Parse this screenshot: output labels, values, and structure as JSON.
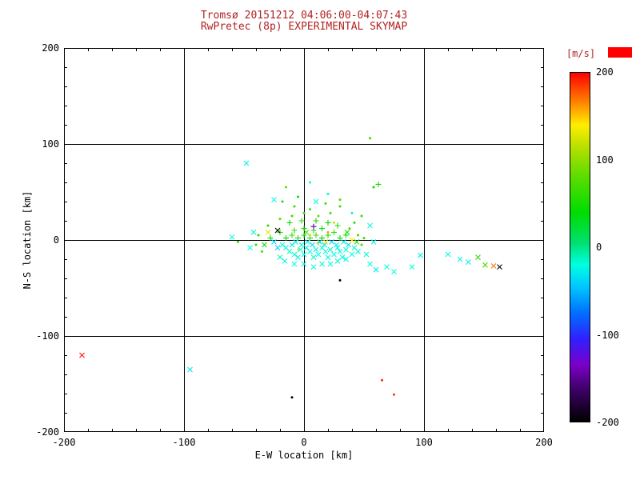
{
  "title": {
    "line1": "Tromsø 20151212 04:06:00-04:07:43",
    "line2": "RwPretec (8p) EXPERIMENTAL SKYMAP"
  },
  "colors": {
    "background": "#ffffff",
    "title": "#b22222",
    "axis": "#000000",
    "saturation_box": "#ff0000"
  },
  "chart_data": {
    "type": "scatter",
    "xlabel": "E-W location [km]",
    "ylabel": "N-S location [km]",
    "xlim": [
      -200,
      200
    ],
    "ylim": [
      -200,
      200
    ],
    "xticks": [
      -200,
      -100,
      0,
      100,
      200
    ],
    "yticks": [
      -200,
      -100,
      0,
      100,
      200
    ],
    "grid": true,
    "legend_position": "right-colorbar",
    "colorbar": {
      "label": "[m/s]",
      "min": -200,
      "max": 200,
      "ticks": [
        200,
        100,
        0,
        -100,
        -200
      ],
      "stops": [
        [
          -200,
          "#000000"
        ],
        [
          -165,
          "#3a0060"
        ],
        [
          -135,
          "#7a00c8"
        ],
        [
          -105,
          "#3020ff"
        ],
        [
          -75,
          "#0070ff"
        ],
        [
          -45,
          "#00c8ff"
        ],
        [
          -20,
          "#00ffe0"
        ],
        [
          5,
          "#00e070"
        ],
        [
          40,
          "#00dd00"
        ],
        [
          85,
          "#66dd00"
        ],
        [
          115,
          "#b8e000"
        ],
        [
          140,
          "#ffee00"
        ],
        [
          165,
          "#ff8800"
        ],
        [
          200,
          "#ff0000"
        ]
      ]
    },
    "point_format": [
      "x_km",
      "y_km",
      "velocity_ms",
      "marker"
    ],
    "marker_legend": {
      "x": "cross",
      "+": "plus",
      "d": "dot"
    },
    "points": [
      [
        -185,
        -120,
        195,
        "x"
      ],
      [
        -95,
        -135,
        -30,
        "x"
      ],
      [
        -10,
        -164,
        -200,
        "d"
      ],
      [
        65,
        -146,
        190,
        "d"
      ],
      [
        75,
        -161,
        185,
        "d"
      ],
      [
        55,
        106,
        60,
        "d"
      ],
      [
        -48,
        80,
        -25,
        "x"
      ],
      [
        120,
        -15,
        -20,
        "x"
      ],
      [
        130,
        -20,
        -22,
        "x"
      ],
      [
        137,
        -23,
        -28,
        "x"
      ],
      [
        145,
        -18,
        55,
        "x"
      ],
      [
        151,
        -26,
        75,
        "x"
      ],
      [
        158,
        -27,
        170,
        "x"
      ],
      [
        163,
        -28,
        -200,
        "x"
      ],
      [
        90,
        -28,
        -20,
        "x"
      ],
      [
        97,
        -16,
        -24,
        "x"
      ],
      [
        55,
        -25,
        -20,
        "x"
      ],
      [
        60,
        -31,
        -26,
        "x"
      ],
      [
        69,
        -28,
        -21,
        "x"
      ],
      [
        75,
        -33,
        -23,
        "x"
      ],
      [
        52,
        -15,
        -18,
        "x"
      ],
      [
        30,
        -42,
        -200,
        "d"
      ],
      [
        5,
        60,
        -20,
        "d"
      ],
      [
        -15,
        55,
        80,
        "d"
      ],
      [
        20,
        48,
        -15,
        "d"
      ],
      [
        -5,
        45,
        30,
        "d"
      ],
      [
        10,
        40,
        -20,
        "x"
      ],
      [
        -25,
        42,
        -18,
        "x"
      ],
      [
        30,
        35,
        60,
        "d"
      ],
      [
        40,
        28,
        -15,
        "d"
      ],
      [
        58,
        55,
        45,
        "d"
      ],
      [
        -18,
        40,
        55,
        "d"
      ],
      [
        5,
        32,
        70,
        "d"
      ],
      [
        -8,
        35,
        60,
        "d"
      ],
      [
        18,
        38,
        65,
        "d"
      ],
      [
        30,
        42,
        75,
        "d"
      ],
      [
        -10,
        25,
        70,
        "d"
      ],
      [
        0,
        28,
        60,
        "d"
      ],
      [
        12,
        25,
        80,
        "d"
      ],
      [
        22,
        28,
        65,
        "d"
      ],
      [
        -20,
        22,
        75,
        "d"
      ],
      [
        -30,
        15,
        60,
        "d"
      ],
      [
        38,
        12,
        70,
        "d"
      ],
      [
        45,
        5,
        65,
        "d"
      ],
      [
        -38,
        5,
        55,
        "d"
      ],
      [
        -40,
        -5,
        60,
        "d"
      ],
      [
        48,
        -5,
        70,
        "d"
      ],
      [
        50,
        2,
        60,
        "d"
      ],
      [
        -35,
        -12,
        65,
        "d"
      ],
      [
        42,
        18,
        55,
        "d"
      ],
      [
        48,
        25,
        60,
        "d"
      ],
      [
        -55,
        -2,
        60,
        "d"
      ],
      [
        -15,
        2,
        40,
        "+"
      ],
      [
        -10,
        5,
        60,
        "+"
      ],
      [
        -5,
        2,
        50,
        "+"
      ],
      [
        0,
        5,
        45,
        "+"
      ],
      [
        5,
        2,
        55,
        "+"
      ],
      [
        10,
        5,
        65,
        "+"
      ],
      [
        15,
        2,
        40,
        "+"
      ],
      [
        20,
        5,
        50,
        "+"
      ],
      [
        -8,
        10,
        60,
        "+"
      ],
      [
        0,
        12,
        45,
        "+"
      ],
      [
        8,
        10,
        55,
        "+"
      ],
      [
        15,
        12,
        35,
        "+"
      ],
      [
        25,
        8,
        60,
        "+"
      ],
      [
        30,
        2,
        45,
        "+"
      ],
      [
        -20,
        8,
        50,
        "+"
      ],
      [
        -28,
        2,
        40,
        "+"
      ],
      [
        35,
        5,
        55,
        "+"
      ],
      [
        -12,
        18,
        45,
        "+"
      ],
      [
        -2,
        20,
        60,
        "+"
      ],
      [
        10,
        20,
        50,
        "+"
      ],
      [
        20,
        18,
        40,
        "+"
      ],
      [
        28,
        15,
        55,
        "+"
      ],
      [
        8,
        14,
        -150,
        "+"
      ],
      [
        12,
        -3,
        130,
        "+"
      ],
      [
        62,
        58,
        50,
        "+"
      ],
      [
        -30,
        8,
        130,
        "x"
      ],
      [
        5,
        5,
        120,
        "d"
      ],
      [
        18,
        -2,
        140,
        "x"
      ],
      [
        -5,
        -10,
        130,
        "d"
      ],
      [
        25,
        18,
        120,
        "d"
      ],
      [
        40,
        0,
        135,
        "x"
      ],
      [
        20,
        8,
        160,
        "d"
      ],
      [
        -22,
        10,
        -200,
        "x"
      ],
      [
        -18,
        -5,
        -20,
        "x"
      ],
      [
        -15,
        -8,
        -25,
        "x"
      ],
      [
        -12,
        -12,
        -15,
        "x"
      ],
      [
        -10,
        -5,
        -30,
        "x"
      ],
      [
        -8,
        -15,
        -20,
        "x"
      ],
      [
        -5,
        -18,
        -25,
        "x"
      ],
      [
        -3,
        -10,
        -18,
        "x"
      ],
      [
        0,
        -15,
        -22,
        "x"
      ],
      [
        2,
        -8,
        -28,
        "x"
      ],
      [
        5,
        -12,
        -20,
        "x"
      ],
      [
        8,
        -18,
        -15,
        "x"
      ],
      [
        10,
        -10,
        -25,
        "x"
      ],
      [
        12,
        -15,
        -20,
        "x"
      ],
      [
        15,
        -8,
        -18,
        "x"
      ],
      [
        18,
        -12,
        -22,
        "x"
      ],
      [
        20,
        -18,
        -25,
        "x"
      ],
      [
        22,
        -10,
        -15,
        "x"
      ],
      [
        25,
        -15,
        -20,
        "x"
      ],
      [
        28,
        -8,
        -25,
        "x"
      ],
      [
        30,
        -12,
        -18,
        "x"
      ],
      [
        32,
        -18,
        -22,
        "x"
      ],
      [
        35,
        -10,
        -20,
        "x"
      ],
      [
        -20,
        -18,
        -15,
        "x"
      ],
      [
        -16,
        -22,
        -25,
        "x"
      ],
      [
        -8,
        -25,
        -20,
        "x"
      ],
      [
        0,
        -25,
        -30,
        "x"
      ],
      [
        8,
        -28,
        -20,
        "x"
      ],
      [
        15,
        -25,
        -15,
        "x"
      ],
      [
        22,
        -25,
        -22,
        "x"
      ],
      [
        28,
        -22,
        -18,
        "x"
      ],
      [
        35,
        -20,
        -25,
        "x"
      ],
      [
        40,
        -15,
        -20,
        "x"
      ],
      [
        42,
        -8,
        -15,
        "x"
      ],
      [
        45,
        -12,
        -25,
        "x"
      ],
      [
        -25,
        -2,
        -35,
        "x"
      ],
      [
        -22,
        -8,
        -40,
        "x"
      ],
      [
        3,
        -2,
        -30,
        "x"
      ],
      [
        7,
        -5,
        -35,
        "x"
      ],
      [
        13,
        -2,
        -40,
        "x"
      ],
      [
        17,
        -5,
        -30,
        "x"
      ],
      [
        23,
        -2,
        -35,
        "x"
      ],
      [
        27,
        -5,
        -25,
        "x"
      ],
      [
        33,
        -2,
        -30,
        "x"
      ],
      [
        37,
        -5,
        -35,
        "x"
      ],
      [
        -2,
        -5,
        -25,
        "x"
      ],
      [
        -7,
        -2,
        -30,
        "x"
      ],
      [
        55,
        15,
        -20,
        "x"
      ],
      [
        58,
        -2,
        -25,
        "x"
      ],
      [
        -45,
        -8,
        -20,
        "x"
      ],
      [
        -42,
        8,
        -15,
        "x"
      ],
      [
        -60,
        3,
        -20,
        "x"
      ],
      [
        -33,
        -5,
        45,
        "x"
      ],
      [
        36,
        8,
        50,
        "x"
      ],
      [
        2,
        8,
        70,
        "x"
      ],
      [
        44,
        -2,
        60,
        "x"
      ]
    ]
  }
}
